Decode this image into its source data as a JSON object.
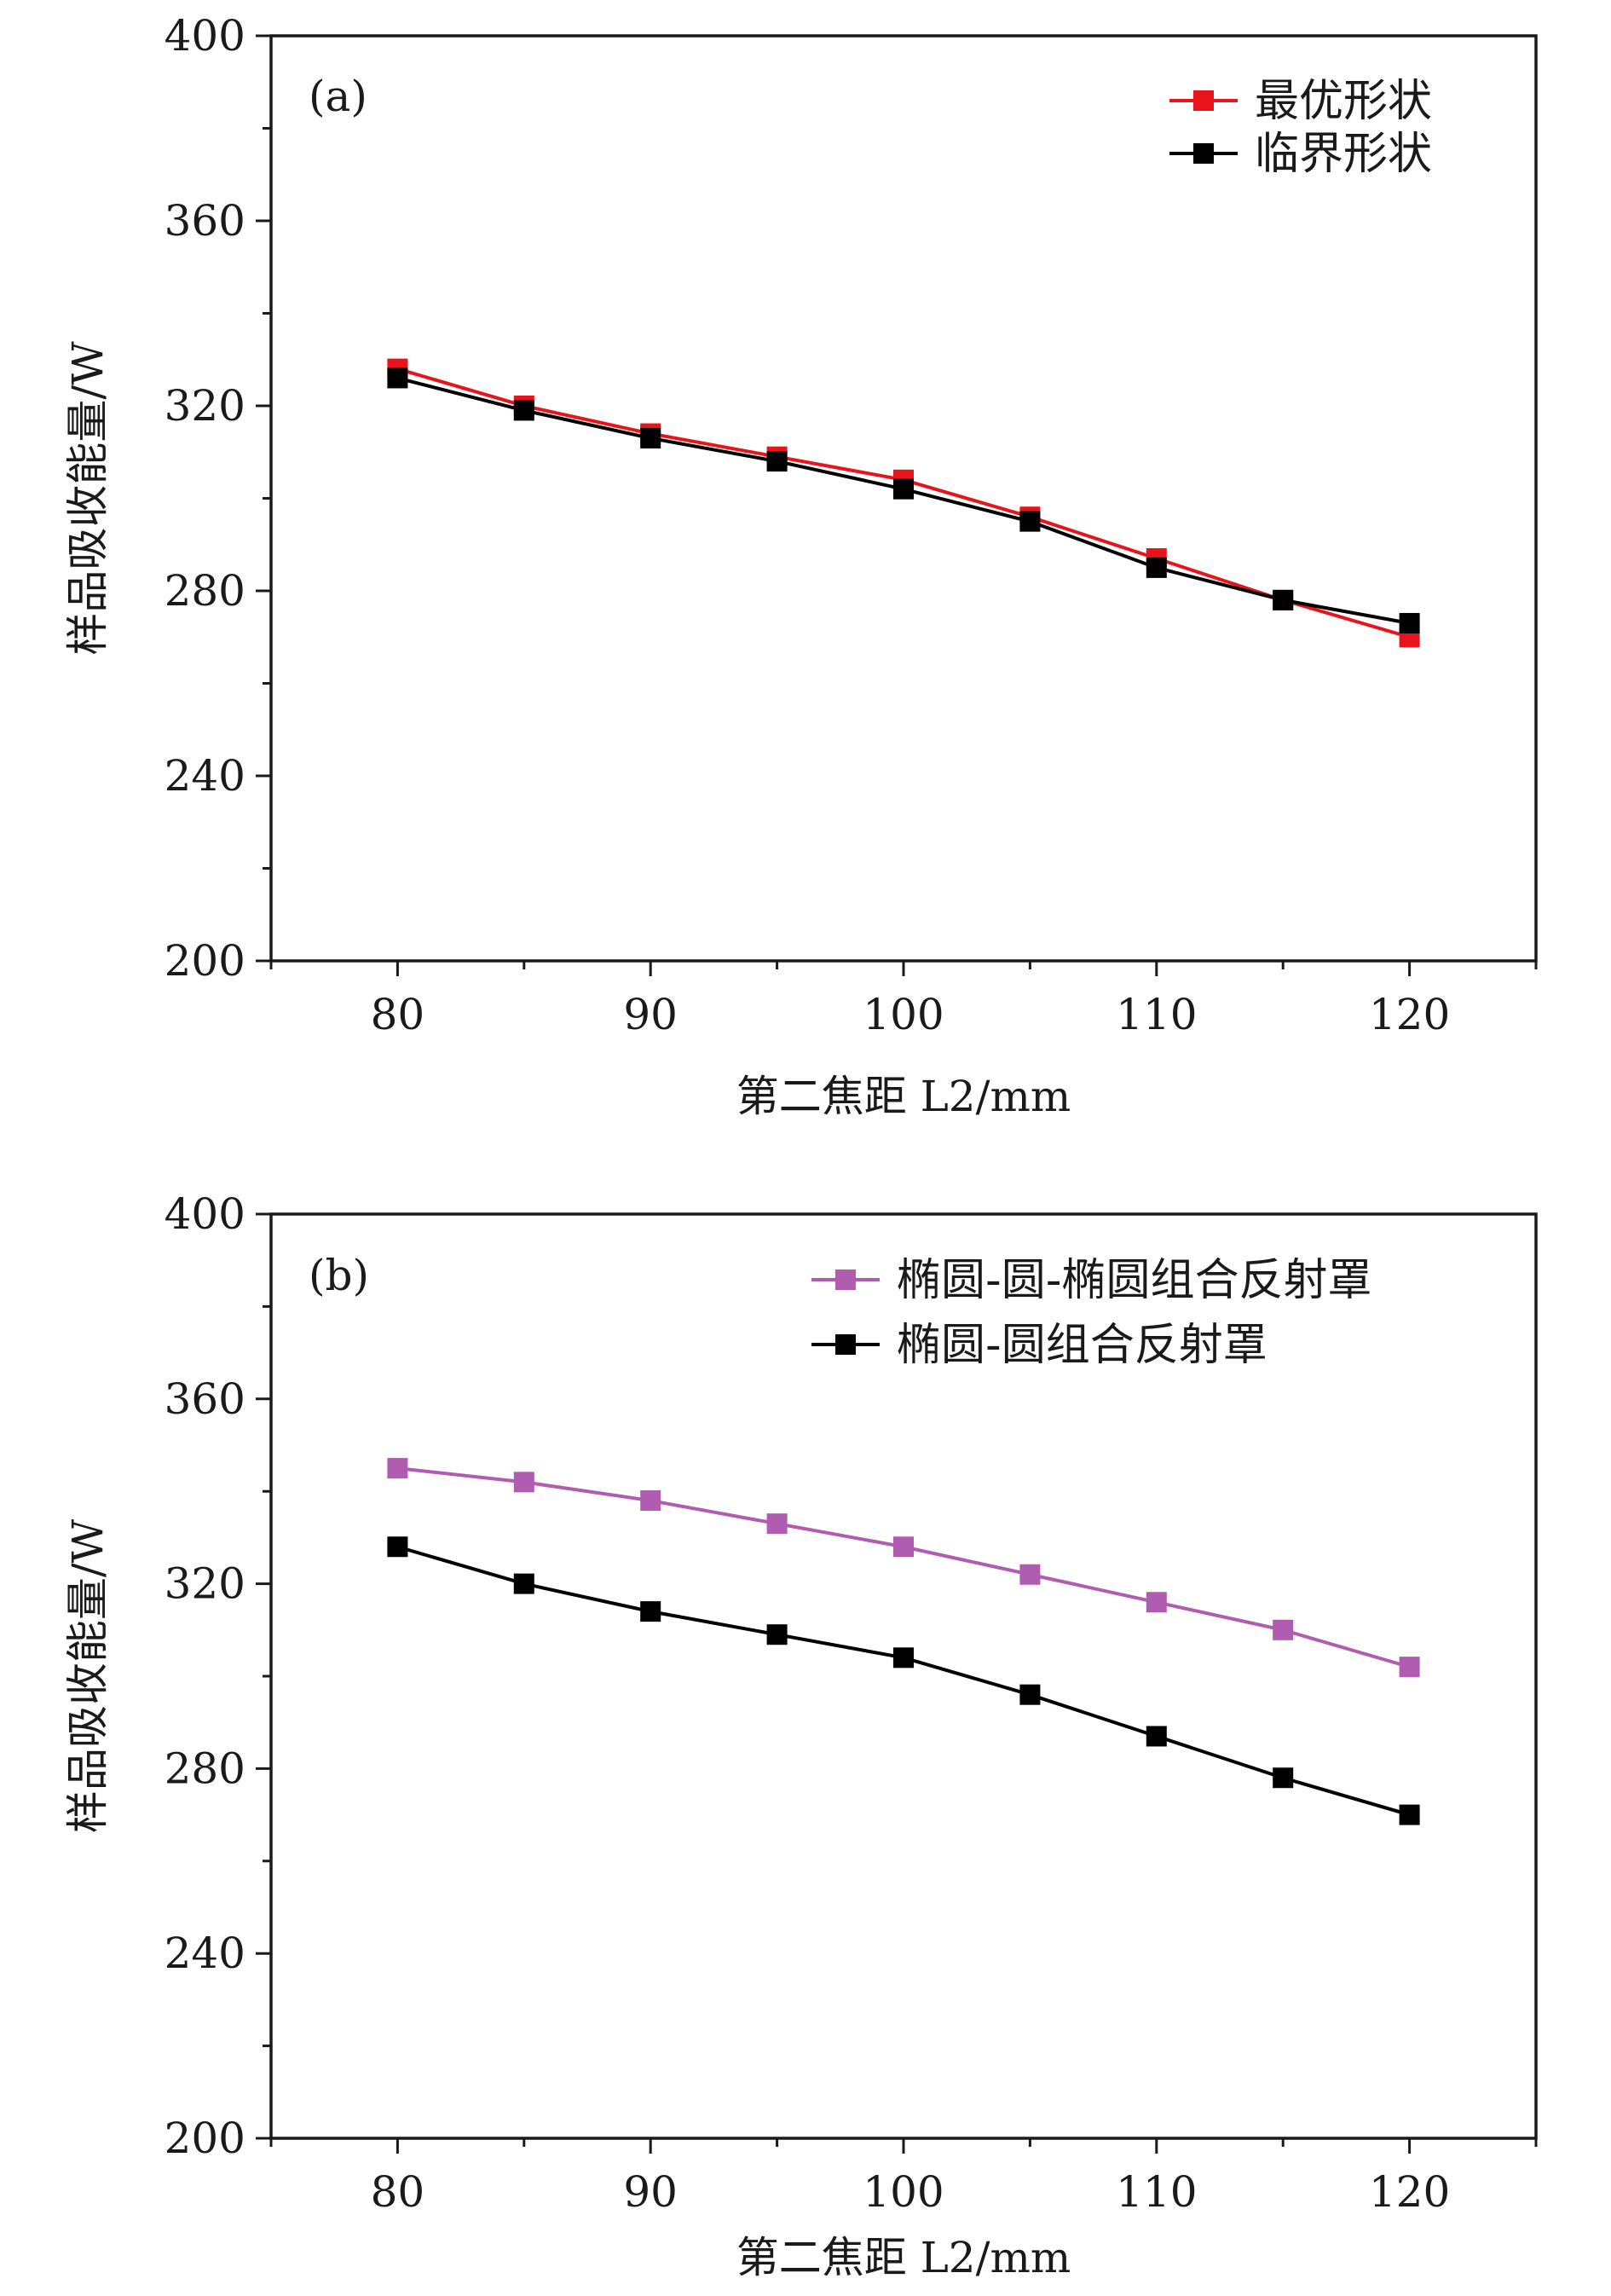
{
  "chart_data": [
    {
      "type": "line",
      "panel_label": "(a)",
      "x": [
        80,
        85,
        90,
        95,
        100,
        105,
        110,
        115,
        120
      ],
      "xlim": [
        75,
        125
      ],
      "ylim": [
        200,
        400
      ],
      "x_ticks": [
        80,
        90,
        100,
        110,
        120
      ],
      "y_ticks": [
        200,
        240,
        280,
        320,
        360,
        400
      ],
      "x_tick_labels": [
        "80",
        "90",
        "100",
        "110",
        "120"
      ],
      "y_tick_labels": [
        "200",
        "240",
        "280",
        "320",
        "360",
        "400"
      ],
      "xlabel": "第二焦距 L2/mm",
      "ylabel": "样品吸收能量/W",
      "legend_position": "top-right",
      "series": [
        {
          "name": "最优形状",
          "color": "#e8141c",
          "marker": "square",
          "values": [
            328,
            320,
            314,
            309,
            304,
            296,
            287,
            278,
            270
          ]
        },
        {
          "name": "临界形状",
          "color": "#000000",
          "marker": "square",
          "values": [
            326,
            319,
            313,
            308,
            302,
            295,
            285,
            278,
            273
          ]
        }
      ]
    },
    {
      "type": "line",
      "panel_label": "(b)",
      "x": [
        80,
        85,
        90,
        95,
        100,
        105,
        110,
        115,
        120
      ],
      "xlim": [
        75,
        125
      ],
      "ylim": [
        200,
        400
      ],
      "x_ticks": [
        80,
        90,
        100,
        110,
        120
      ],
      "y_ticks": [
        200,
        240,
        280,
        320,
        360,
        400
      ],
      "x_tick_labels": [
        "80",
        "90",
        "100",
        "110",
        "120"
      ],
      "y_tick_labels": [
        "200",
        "240",
        "280",
        "320",
        "360",
        "400"
      ],
      "xlabel": "第二焦距 L2/mm",
      "ylabel": "样品吸收能量/W",
      "legend_position": "top-right",
      "series": [
        {
          "name": "椭圆-圆-椭圆组合反射罩",
          "color": "#b05cb0",
          "marker": "square",
          "values": [
            345,
            342,
            338,
            333,
            328,
            322,
            316,
            310,
            302
          ]
        },
        {
          "name": "椭圆-圆组合反射罩",
          "color": "#000000",
          "marker": "square",
          "values": [
            328,
            320,
            314,
            309,
            304,
            296,
            287,
            278,
            270
          ]
        }
      ]
    }
  ]
}
